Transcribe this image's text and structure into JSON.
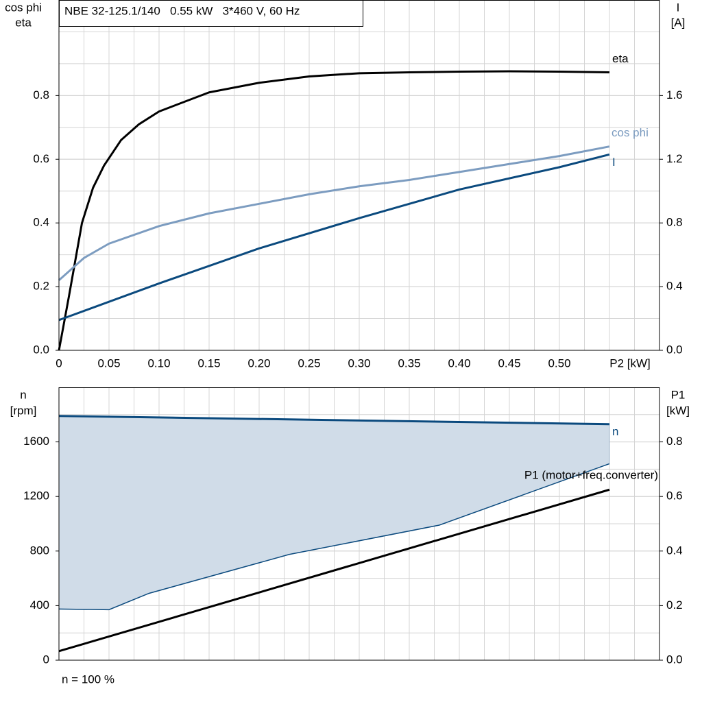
{
  "header": {
    "title": "NBE 32-125.1/140   0.55 kW   3*460 V, 60 Hz"
  },
  "chart_data": [
    {
      "type": "line",
      "y_label": [
        "cos phi",
        "eta"
      ],
      "y2_label": [
        "I",
        "[A]"
      ],
      "x_label": "P2 [kW]",
      "xlim": [
        0,
        0.6
      ],
      "ylim": [
        0,
        1.1
      ],
      "y2lim": [
        0,
        2.2
      ],
      "xticks": [
        {
          "value": 0,
          "label": "0"
        },
        0.05,
        {
          "value": 0.1,
          "label": "0.10"
        },
        0.15,
        {
          "value": 0.2,
          "label": "0.20"
        },
        0.25,
        {
          "value": 0.3,
          "label": "0.30"
        },
        0.35,
        {
          "value": 0.4,
          "label": "0.40"
        },
        0.45,
        {
          "value": 0.5,
          "label": "0.50"
        }
      ],
      "yticks": [
        {
          "value": 0,
          "label": "0.0"
        },
        0.2,
        0.4,
        0.6,
        0.8
      ],
      "y2ticks": [
        {
          "value": 0,
          "label": "0.0"
        },
        0.4,
        0.8,
        1.2,
        1.6
      ],
      "grid": true,
      "series": [
        {
          "name": "eta",
          "color": "#000000",
          "axis": "y",
          "x": [
            0,
            0.01,
            0.023,
            0.034,
            0.045,
            0.062,
            0.08,
            0.1,
            0.15,
            0.2,
            0.25,
            0.3,
            0.35,
            0.4,
            0.45,
            0.5,
            0.55
          ],
          "values": [
            0,
            0.17,
            0.4,
            0.51,
            0.58,
            0.66,
            0.71,
            0.75,
            0.81,
            0.84,
            0.86,
            0.87,
            0.873,
            0.875,
            0.876,
            0.875,
            0.873
          ]
        },
        {
          "name": "cos phi",
          "color": "#7c9cc0",
          "axis": "y",
          "x": [
            0,
            0.025,
            0.05,
            0.1,
            0.15,
            0.2,
            0.25,
            0.3,
            0.35,
            0.4,
            0.45,
            0.5,
            0.55
          ],
          "values": [
            0.22,
            0.29,
            0.335,
            0.39,
            0.43,
            0.46,
            0.49,
            0.515,
            0.535,
            0.56,
            0.585,
            0.61,
            0.64
          ]
        },
        {
          "name": "I",
          "color": "#0b4a7e",
          "axis": "y2",
          "x": [
            0,
            0.1,
            0.2,
            0.3,
            0.4,
            0.5,
            0.55
          ],
          "values": [
            0.19,
            0.42,
            0.64,
            0.83,
            1.01,
            1.15,
            1.23
          ]
        }
      ]
    },
    {
      "type": "line",
      "y_label": [
        "n",
        "[rpm]"
      ],
      "y2_label": [
        "P1",
        "[kW]"
      ],
      "footnote": "n = 100 %",
      "xlim": [
        0,
        0.6
      ],
      "ylim": [
        0,
        2000
      ],
      "y2lim": [
        0,
        1.0
      ],
      "yticks": [
        0,
        400,
        800,
        1200,
        1600
      ],
      "y2ticks": [
        {
          "value": 0,
          "label": "0.0"
        },
        0.2,
        0.4,
        0.6,
        0.8
      ],
      "grid": true,
      "band": {
        "color": "#d0dce8",
        "edge_color": "#0b4a7e",
        "x": [
          0,
          0.05,
          0.09,
          0.23,
          0.38,
          0.55
        ],
        "values": [
          375,
          370,
          490,
          775,
          990,
          1440
        ]
      },
      "series": [
        {
          "name": "n",
          "color": "#0b4a7e",
          "axis": "y",
          "x": [
            0,
            0.55
          ],
          "values": [
            1790,
            1730
          ]
        },
        {
          "name": "P1 (motor+freq.converter)",
          "color": "#000000",
          "axis": "y2",
          "x": [
            0,
            0.55
          ],
          "values": [
            0.033,
            0.625
          ]
        }
      ]
    }
  ]
}
